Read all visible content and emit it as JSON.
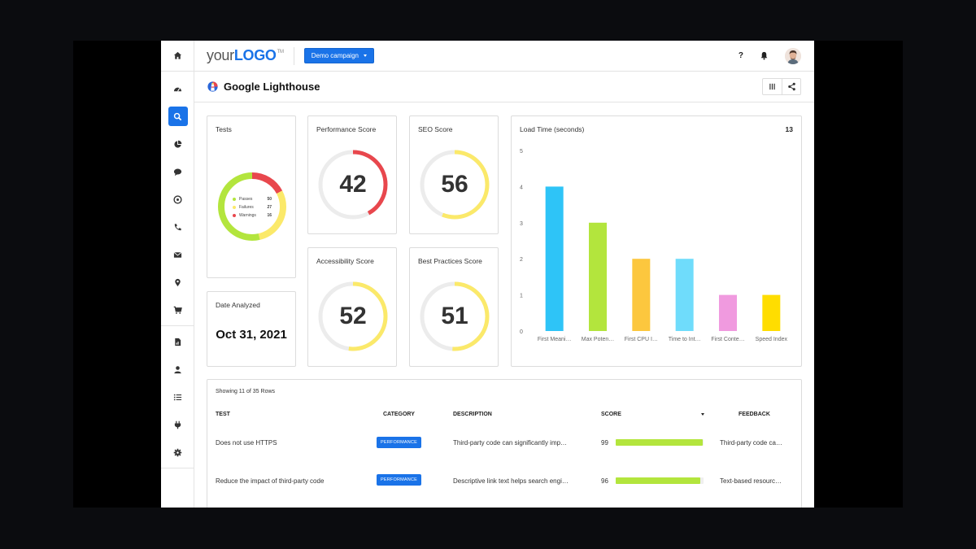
{
  "header": {
    "logo_part1": "your",
    "logo_part2": "LOGO",
    "logo_tm": "TM",
    "campaign_label": "Demo campaign",
    "help_label": "?"
  },
  "page": {
    "title": "Google Lighthouse"
  },
  "cards": {
    "tests": {
      "title": "Tests",
      "legend": [
        {
          "label": "Passes",
          "value": "50",
          "color": "#b3e53d"
        },
        {
          "label": "Failures",
          "value": "27",
          "color": "#fbe96a"
        },
        {
          "label": "Warnings",
          "value": "16",
          "color": "#e8474d"
        }
      ]
    },
    "date": {
      "title": "Date Analyzed",
      "value": "Oct 31, 2021"
    },
    "performance": {
      "title": "Performance Score",
      "score": 42,
      "color": "#e8474d"
    },
    "seo": {
      "title": "SEO Score",
      "score": 56,
      "color": "#fbe96a"
    },
    "accessibility": {
      "title": "Accessibility Score",
      "score": 52,
      "color": "#fbe96a"
    },
    "best_practices": {
      "title": "Best Practices Score",
      "score": 51,
      "color": "#fbe96a"
    },
    "load_time": {
      "title": "Load Time (seconds)",
      "total": "13"
    }
  },
  "chart_data": {
    "type": "bar",
    "title": "Load Time (seconds)",
    "categories": [
      "First Meani…",
      "Max Poten…",
      "First CPU I…",
      "Time to Int…",
      "First Conte…",
      "Speed Index"
    ],
    "values": [
      4,
      3,
      2,
      2,
      1,
      1
    ],
    "colors": [
      "#2ec4f7",
      "#b3e53d",
      "#fcc73e",
      "#6fdcfb",
      "#f09adf",
      "#ffdd00"
    ],
    "ylim": [
      0,
      5
    ],
    "yticks": [
      "0",
      "1",
      "2",
      "3",
      "4",
      "5"
    ],
    "grid": false,
    "legend": "none"
  },
  "table": {
    "rows_info": "Showing 11 of 35 Rows",
    "headers": {
      "test": "TEST",
      "category": "CATEGORY",
      "description": "DESCRIPTION",
      "score": "SCORE",
      "feedback": "FEEDBACK"
    },
    "rows": [
      {
        "test": "Does not use HTTPS",
        "category": "PERFORMANCE",
        "description": "Third-party code can significantly imp…",
        "score": "99",
        "score_pct": 99,
        "feedback": "Third-party code ca…"
      },
      {
        "test": "Reduce the impact of third-party code",
        "category": "PERFORMANCE",
        "description": "Descriptive link text helps search engi…",
        "score": "96",
        "score_pct": 96,
        "feedback": "Text-based resourc…"
      }
    ]
  }
}
